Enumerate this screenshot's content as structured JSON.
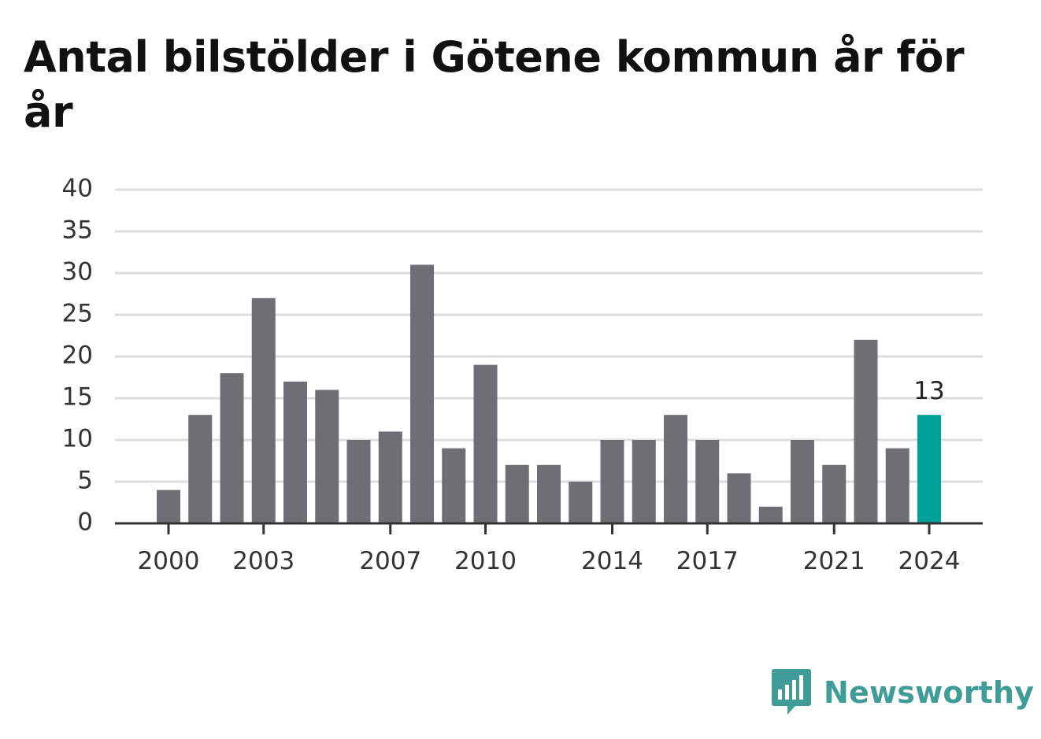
{
  "title": "Antal bilstölder i Götene kommun år för år",
  "brand": {
    "name": "Newsworthy",
    "icon": "newsworthy-logo-icon",
    "color": "#3f9c96"
  },
  "chart_data": {
    "type": "bar",
    "title": "Antal bilstölder i Götene kommun år för år",
    "xlabel": "",
    "ylabel": "",
    "categories": [
      2000,
      2001,
      2002,
      2003,
      2004,
      2005,
      2006,
      2007,
      2008,
      2009,
      2010,
      2011,
      2012,
      2013,
      2014,
      2015,
      2016,
      2017,
      2018,
      2019,
      2020,
      2021,
      2022,
      2023,
      2024
    ],
    "values": [
      4,
      13,
      18,
      27,
      17,
      16,
      10,
      11,
      31,
      9,
      19,
      7,
      7,
      5,
      10,
      10,
      13,
      10,
      6,
      2,
      10,
      7,
      22,
      9,
      13
    ],
    "x_tick_labels": [
      "2000",
      "2003",
      "2007",
      "2010",
      "2014",
      "2017",
      "2021",
      "2024"
    ],
    "y_ticks": [
      0,
      5,
      10,
      15,
      20,
      25,
      30,
      35,
      40
    ],
    "ylim": [
      0,
      40
    ],
    "grid": true,
    "legend": "none",
    "highlight": {
      "category": 2024,
      "label": "13"
    },
    "colors": {
      "bar": "#6f6e73",
      "highlight": "#00a19a",
      "grid": "#dddddd",
      "axis": "#333333"
    }
  }
}
